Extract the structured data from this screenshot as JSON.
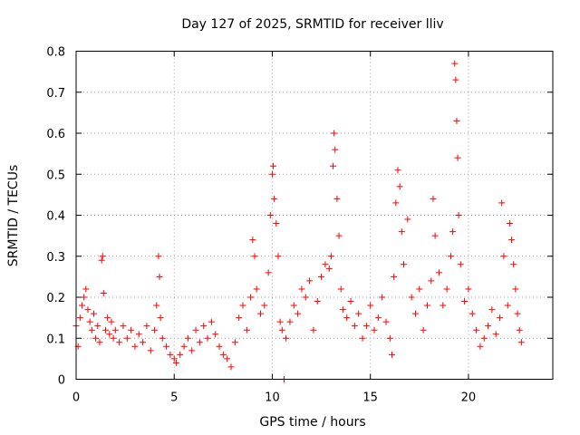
{
  "chart_data": {
    "type": "scatter",
    "title": "Day 127 of 2025, SRMTID for receiver lliv",
    "xlabel": "GPS time / hours",
    "ylabel": "SRMTID / TECUs",
    "xlim": [
      0,
      24.3
    ],
    "ylim": [
      0,
      0.8
    ],
    "xticks": [
      0,
      5,
      10,
      15,
      20
    ],
    "xtick_labels": [
      "0",
      "5",
      "10",
      "15",
      "20"
    ],
    "yticks": [
      0,
      0.1,
      0.2,
      0.3,
      0.4,
      0.5,
      0.6,
      0.7,
      0.8
    ],
    "ytick_labels": [
      "0",
      "0.1",
      "0.2",
      "0.3",
      "0.4",
      "0.5",
      "0.6",
      "0.7",
      "0.8"
    ],
    "grid": true,
    "marker": "plus",
    "marker_color": "#ff0000",
    "series": [
      {
        "name": "SRMTID",
        "points": [
          [
            0.0,
            0.13
          ],
          [
            0.1,
            0.08
          ],
          [
            0.2,
            0.15
          ],
          [
            0.3,
            0.18
          ],
          [
            0.4,
            0.2
          ],
          [
            0.5,
            0.22
          ],
          [
            0.6,
            0.17
          ],
          [
            0.7,
            0.14
          ],
          [
            0.8,
            0.12
          ],
          [
            0.9,
            0.16
          ],
          [
            1.0,
            0.1
          ],
          [
            1.1,
            0.13
          ],
          [
            1.2,
            0.09
          ],
          [
            1.3,
            0.29
          ],
          [
            1.35,
            0.3
          ],
          [
            1.4,
            0.21
          ],
          [
            1.5,
            0.12
          ],
          [
            1.6,
            0.15
          ],
          [
            1.7,
            0.11
          ],
          [
            1.8,
            0.14
          ],
          [
            1.9,
            0.1
          ],
          [
            2.0,
            0.12
          ],
          [
            2.2,
            0.09
          ],
          [
            2.4,
            0.13
          ],
          [
            2.6,
            0.1
          ],
          [
            2.8,
            0.12
          ],
          [
            3.0,
            0.08
          ],
          [
            3.2,
            0.11
          ],
          [
            3.4,
            0.09
          ],
          [
            3.6,
            0.13
          ],
          [
            3.8,
            0.07
          ],
          [
            4.0,
            0.12
          ],
          [
            4.1,
            0.18
          ],
          [
            4.2,
            0.3
          ],
          [
            4.25,
            0.25
          ],
          [
            4.3,
            0.15
          ],
          [
            4.4,
            0.1
          ],
          [
            4.6,
            0.08
          ],
          [
            4.8,
            0.06
          ],
          [
            5.0,
            0.05
          ],
          [
            5.1,
            0.04
          ],
          [
            5.3,
            0.06
          ],
          [
            5.5,
            0.08
          ],
          [
            5.7,
            0.1
          ],
          [
            5.9,
            0.07
          ],
          [
            6.1,
            0.12
          ],
          [
            6.3,
            0.09
          ],
          [
            6.5,
            0.13
          ],
          [
            6.7,
            0.1
          ],
          [
            6.9,
            0.14
          ],
          [
            7.1,
            0.11
          ],
          [
            7.3,
            0.08
          ],
          [
            7.5,
            0.06
          ],
          [
            7.7,
            0.05
          ],
          [
            7.9,
            0.03
          ],
          [
            8.1,
            0.09
          ],
          [
            8.3,
            0.15
          ],
          [
            8.5,
            0.18
          ],
          [
            8.7,
            0.12
          ],
          [
            8.9,
            0.2
          ],
          [
            9.0,
            0.34
          ],
          [
            9.1,
            0.3
          ],
          [
            9.2,
            0.22
          ],
          [
            9.4,
            0.16
          ],
          [
            9.6,
            0.18
          ],
          [
            9.8,
            0.26
          ],
          [
            9.9,
            0.4
          ],
          [
            10.0,
            0.5
          ],
          [
            10.05,
            0.52
          ],
          [
            10.1,
            0.44
          ],
          [
            10.2,
            0.38
          ],
          [
            10.3,
            0.3
          ],
          [
            10.4,
            0.14
          ],
          [
            10.5,
            0.12
          ],
          [
            10.6,
            0.0
          ],
          [
            10.7,
            0.1
          ],
          [
            10.9,
            0.14
          ],
          [
            11.1,
            0.18
          ],
          [
            11.3,
            0.16
          ],
          [
            11.5,
            0.22
          ],
          [
            11.7,
            0.2
          ],
          [
            11.9,
            0.24
          ],
          [
            12.1,
            0.12
          ],
          [
            12.3,
            0.19
          ],
          [
            12.5,
            0.25
          ],
          [
            12.7,
            0.28
          ],
          [
            12.9,
            0.27
          ],
          [
            13.0,
            0.3
          ],
          [
            13.1,
            0.52
          ],
          [
            13.15,
            0.6
          ],
          [
            13.2,
            0.56
          ],
          [
            13.3,
            0.44
          ],
          [
            13.4,
            0.35
          ],
          [
            13.5,
            0.22
          ],
          [
            13.6,
            0.17
          ],
          [
            13.8,
            0.15
          ],
          [
            14.0,
            0.19
          ],
          [
            14.2,
            0.13
          ],
          [
            14.4,
            0.16
          ],
          [
            14.6,
            0.1
          ],
          [
            14.8,
            0.13
          ],
          [
            15.0,
            0.18
          ],
          [
            15.2,
            0.12
          ],
          [
            15.4,
            0.15
          ],
          [
            15.6,
            0.2
          ],
          [
            15.8,
            0.14
          ],
          [
            16.0,
            0.1
          ],
          [
            16.1,
            0.06
          ],
          [
            16.2,
            0.25
          ],
          [
            16.3,
            0.43
          ],
          [
            16.4,
            0.51
          ],
          [
            16.5,
            0.47
          ],
          [
            16.6,
            0.36
          ],
          [
            16.7,
            0.28
          ],
          [
            16.9,
            0.39
          ],
          [
            17.1,
            0.2
          ],
          [
            17.3,
            0.16
          ],
          [
            17.5,
            0.22
          ],
          [
            17.7,
            0.12
          ],
          [
            17.9,
            0.18
          ],
          [
            18.1,
            0.24
          ],
          [
            18.2,
            0.44
          ],
          [
            18.3,
            0.35
          ],
          [
            18.5,
            0.26
          ],
          [
            18.7,
            0.18
          ],
          [
            18.9,
            0.22
          ],
          [
            19.1,
            0.3
          ],
          [
            19.2,
            0.36
          ],
          [
            19.3,
            0.77
          ],
          [
            19.35,
            0.73
          ],
          [
            19.4,
            0.63
          ],
          [
            19.45,
            0.54
          ],
          [
            19.5,
            0.4
          ],
          [
            19.6,
            0.28
          ],
          [
            19.8,
            0.19
          ],
          [
            20.0,
            0.22
          ],
          [
            20.2,
            0.16
          ],
          [
            20.4,
            0.12
          ],
          [
            20.6,
            0.08
          ],
          [
            20.8,
            0.1
          ],
          [
            21.0,
            0.13
          ],
          [
            21.2,
            0.17
          ],
          [
            21.4,
            0.11
          ],
          [
            21.6,
            0.15
          ],
          [
            21.7,
            0.43
          ],
          [
            21.8,
            0.3
          ],
          [
            22.0,
            0.18
          ],
          [
            22.1,
            0.38
          ],
          [
            22.2,
            0.34
          ],
          [
            22.3,
            0.28
          ],
          [
            22.4,
            0.22
          ],
          [
            22.5,
            0.16
          ],
          [
            22.6,
            0.12
          ],
          [
            22.7,
            0.09
          ]
        ]
      }
    ]
  }
}
